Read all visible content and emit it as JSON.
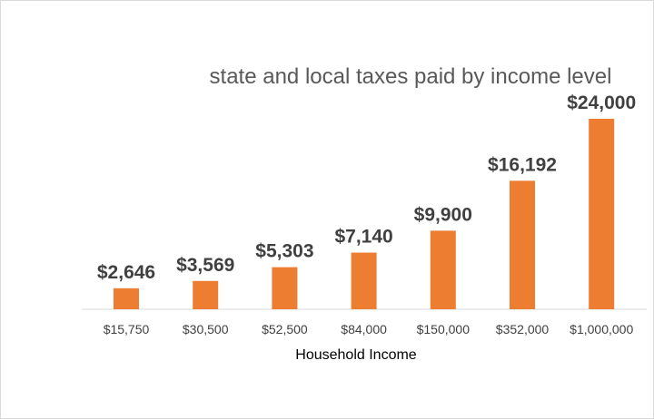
{
  "chart_data": {
    "type": "bar",
    "title": "state and local taxes paid by income level",
    "xlabel": "Household Income",
    "ylabel": "",
    "categories": [
      "$15,750",
      "$30,500",
      "$52,500",
      "$84,000",
      "$150,000",
      "$352,000",
      "$1,000,000"
    ],
    "values": [
      2646,
      3569,
      5303,
      7140,
      9900,
      16192,
      24000
    ],
    "data_labels": [
      "$2,646",
      "$3,569",
      "$5,303",
      "$7,140",
      "$9,900",
      "$16,192",
      "$24,000"
    ],
    "ylim": [
      0,
      24000
    ],
    "grid": false,
    "legend": "none",
    "colors": {
      "bar": "#ED7D31",
      "axis": "#d9d9d9"
    }
  }
}
